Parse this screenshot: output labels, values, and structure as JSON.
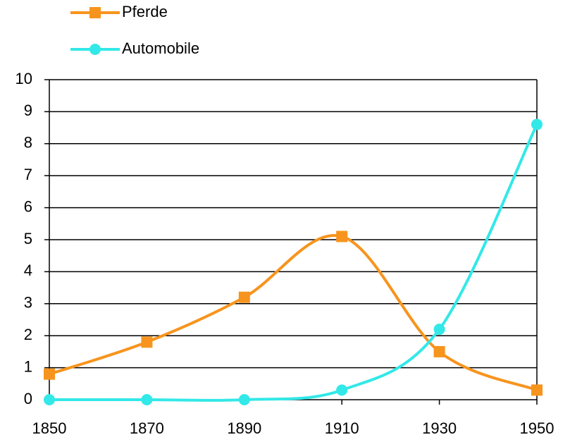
{
  "chart_data": {
    "type": "line",
    "x": [
      1850,
      1870,
      1890,
      1910,
      1930,
      1950
    ],
    "xlim": [
      1850,
      1950
    ],
    "xticks": [
      1850,
      1870,
      1890,
      1910,
      1930,
      1950
    ],
    "ylim": [
      0,
      10
    ],
    "yticks": [
      0,
      1,
      2,
      3,
      4,
      5,
      6,
      7,
      8,
      9,
      10
    ],
    "grid": true,
    "smooth": true,
    "legend": "top-left",
    "series": [
      {
        "name": "Pferde",
        "color": "#f7941d",
        "marker": "square",
        "values": [
          0.8,
          1.8,
          3.2,
          5.1,
          1.5,
          0.3
        ]
      },
      {
        "name": "Automobile",
        "color": "#33e8e8",
        "marker": "circle",
        "values": [
          0,
          0,
          0,
          0.3,
          2.2,
          8.6
        ]
      }
    ]
  }
}
